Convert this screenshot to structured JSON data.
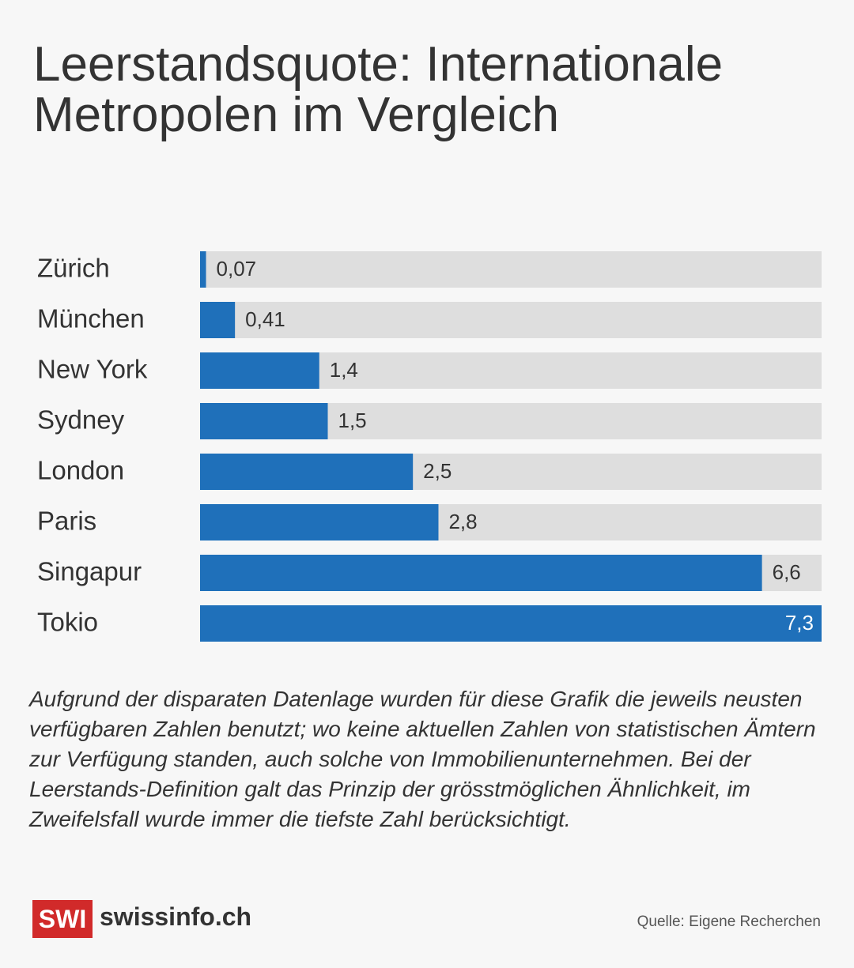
{
  "chart_data": {
    "type": "bar",
    "orientation": "horizontal",
    "title": "Leerstandsquote: Internationale Metropolen im Vergleich",
    "categories": [
      "Zürich",
      "München",
      "New York",
      "Sydney",
      "London",
      "Paris",
      "Singapur",
      "Tokio"
    ],
    "values": [
      0.07,
      0.41,
      1.4,
      1.5,
      2.5,
      2.8,
      6.6,
      7.3
    ],
    "value_labels": [
      "0,07",
      "0,41",
      "1,4",
      "1,5",
      "2,5",
      "2,8",
      "6,6",
      "7,3"
    ],
    "color": "#1f70ba",
    "xlim": [
      0,
      7.3
    ],
    "note": "Aufgrund der disparaten Datenlage wurden für diese Grafik die jeweils neusten verfügbaren Zahlen benutzt; wo keine aktuellen Zahlen von statistischen Ämtern zur Verfügung standen, auch solche von Immobilienunternehmen. Bei der Leerstands-Definition galt das Prinzip der grösstmöglichen Ähnlichkeit, im Zweifelsfall wurde immer die tiefste Zahl berücksichtigt.",
    "logo": "SWI",
    "brand": "swissinfo.ch",
    "source": "Quelle: Eigene Recherchen"
  }
}
